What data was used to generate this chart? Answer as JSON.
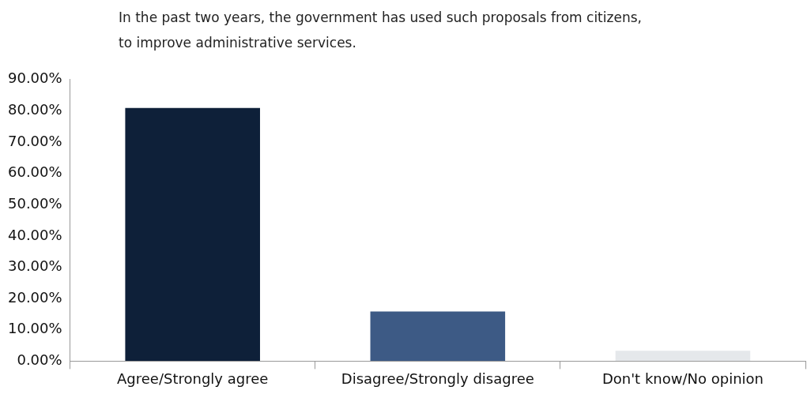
{
  "chart_data": {
    "type": "bar",
    "title": "In the past two years, the government has used such proposals from citizens, to improve administrative services.",
    "categories": [
      "Agree/Strongly agree",
      "Disagree/Strongly disagree",
      "Don't know/No opinion"
    ],
    "values": [
      80.9,
      15.9,
      3.3
    ],
    "colors": [
      "#0e2039",
      "#3d5a85",
      "#e5e8eb"
    ],
    "ylim": [
      0,
      90
    ],
    "yticks": [
      {
        "value": 0,
        "label": "0.00%"
      },
      {
        "value": 10,
        "label": "10.00%"
      },
      {
        "value": 20,
        "label": "20.00%"
      },
      {
        "value": 30,
        "label": "30.00%"
      },
      {
        "value": 40,
        "label": "40.00%"
      },
      {
        "value": 50,
        "label": "50.00%"
      },
      {
        "value": 60,
        "label": "60.00%"
      },
      {
        "value": 70,
        "label": "70.00%"
      },
      {
        "value": 80,
        "label": "80.00%"
      },
      {
        "value": 90,
        "label": "90.00%"
      }
    ],
    "grid": false,
    "legend": false
  }
}
